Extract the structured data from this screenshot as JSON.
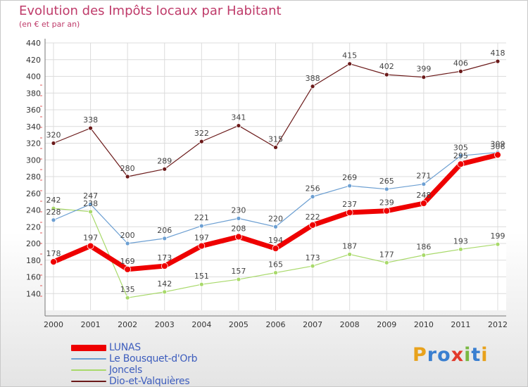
{
  "chart_data": {
    "type": "line",
    "title": "Evolution des Impôts locaux par Habitant",
    "subtitle": "(en € et par an)",
    "x": [
      "2000",
      "2001",
      "2002",
      "2003",
      "2004",
      "2005",
      "2006",
      "2007",
      "2008",
      "2009",
      "2010",
      "2011",
      "2012"
    ],
    "ylim": [
      120,
      440
    ],
    "yticks": [
      140,
      160,
      180,
      200,
      220,
      240,
      260,
      280,
      300,
      320,
      340,
      360,
      380,
      400,
      420,
      440
    ],
    "grid": true,
    "legend_position": "bottom-left",
    "series": [
      {
        "name": "Dio-et-Valquières",
        "color": "#6b1a1a",
        "width": 1.2,
        "values": [
          320,
          338,
          280,
          289,
          322,
          341,
          315,
          388,
          415,
          402,
          399,
          406,
          418
        ]
      },
      {
        "name": "Joncels",
        "color": "#a8d96a",
        "width": 1.2,
        "values": [
          242,
          238,
          135,
          142,
          151,
          157,
          165,
          173,
          187,
          177,
          186,
          193,
          199
        ]
      },
      {
        "name": "Le Bousquet-d'Orb",
        "color": "#6c9fd2",
        "width": 1.2,
        "values": [
          228,
          247,
          200,
          206,
          221,
          230,
          220,
          256,
          269,
          265,
          271,
          305,
          309
        ]
      },
      {
        "name": "LUNAS",
        "color": "#ee0000",
        "width": 7,
        "values": [
          178,
          197,
          169,
          173,
          197,
          208,
          194,
          222,
          237,
          239,
          248,
          295,
          306
        ]
      }
    ]
  },
  "legend": [
    {
      "label": "LUNAS",
      "color": "#ee0000",
      "thickness": 9
    },
    {
      "label": "Le Bousquet-d'Orb",
      "color": "#6c9fd2",
      "thickness": 2
    },
    {
      "label": "Joncels",
      "color": "#a8d96a",
      "thickness": 2
    },
    {
      "label": "Dio-et-Valquières",
      "color": "#6b1a1a",
      "thickness": 2
    }
  ],
  "logo": {
    "letters": [
      "P",
      "r",
      "o",
      "x",
      "i",
      "t",
      "i"
    ],
    "colors": [
      "#e8a21c",
      "#3a7fd0",
      "#3a7fd0",
      "#e23a2b",
      "#7ab843",
      "#3a7fd0",
      "#e8a21c"
    ]
  }
}
